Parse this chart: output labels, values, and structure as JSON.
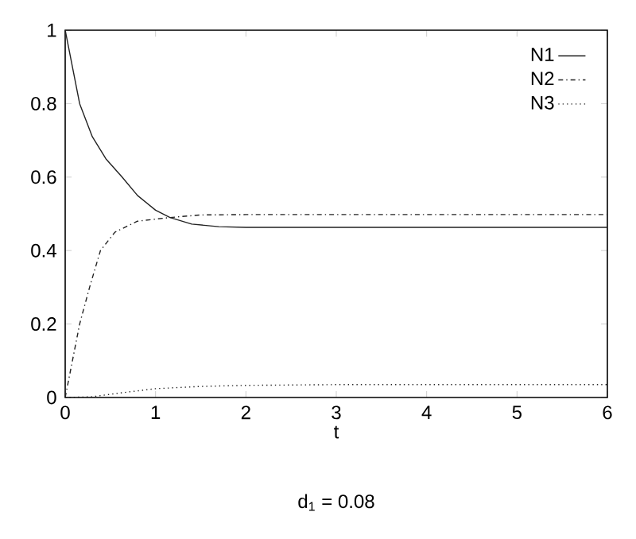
{
  "chart_data": {
    "type": "line",
    "xlabel": "t",
    "annotations": [
      "d$_{1}$ = 0.08"
    ],
    "xlim": [
      0,
      6
    ],
    "ylim": [
      0,
      1
    ],
    "xticks": [
      0,
      1,
      2,
      3,
      4,
      5,
      6
    ],
    "yticks": [
      0,
      0.2,
      0.4,
      0.6,
      0.8,
      1
    ],
    "legend": "top right",
    "grid": false,
    "series": [
      {
        "name": "N1",
        "color": "#222222",
        "line_style": "solid",
        "x": [
          0,
          0.16,
          0.3,
          0.45,
          0.63,
          0.8,
          1.0,
          1.16,
          1.4,
          1.7,
          2,
          6
        ],
        "values": [
          1,
          0.8,
          0.71,
          0.65,
          0.6,
          0.55,
          0.51,
          0.49,
          0.472,
          0.465,
          0.463,
          0.463
        ]
      },
      {
        "name": "N2",
        "color": "#222222",
        "line_style": "dashed",
        "x": [
          0,
          0.08,
          0.16,
          0.27,
          0.39,
          0.55,
          0.8,
          1.16,
          1.5,
          2,
          6
        ],
        "values": [
          0,
          0.1,
          0.2,
          0.3,
          0.4,
          0.45,
          0.48,
          0.49,
          0.497,
          0.498,
          0.498
        ]
      },
      {
        "name": "N3",
        "color": "#222222",
        "line_style": "dotted",
        "x": [
          0,
          0.3,
          0.6,
          1,
          1.5,
          2,
          3,
          6
        ],
        "values": [
          0,
          0.002,
          0.012,
          0.024,
          0.03,
          0.033,
          0.035,
          0.035
        ]
      }
    ]
  }
}
